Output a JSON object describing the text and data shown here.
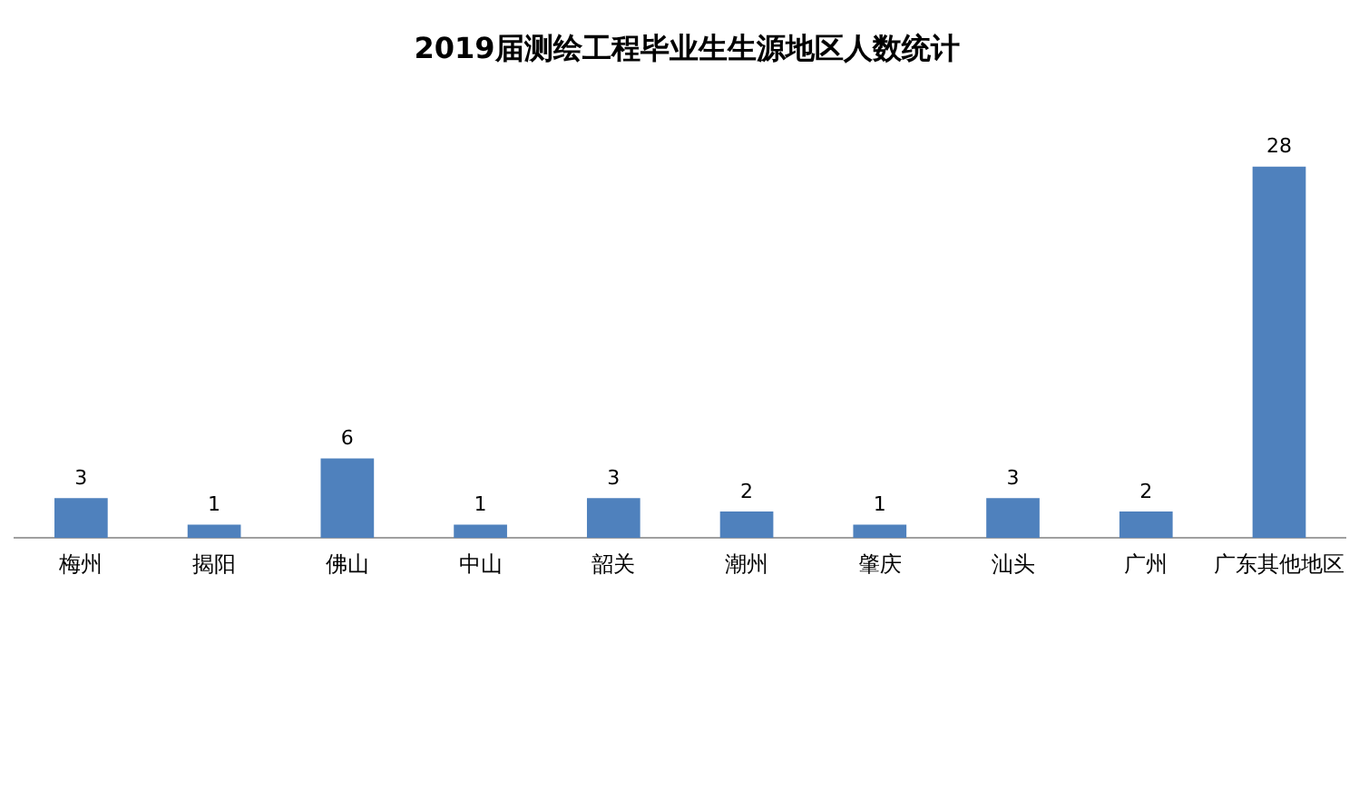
{
  "chart_data": {
    "type": "bar",
    "title": "2019届测绘工程毕业生生源地区人数统计",
    "categories": [
      "梅州",
      "揭阳",
      "佛山",
      "中山",
      "韶关",
      "潮州",
      "肇庆",
      "汕头",
      "广州",
      "广东其他地区"
    ],
    "values": [
      3,
      1,
      6,
      1,
      3,
      2,
      1,
      3,
      2,
      28
    ],
    "color": "#4f81bd",
    "data_labels": true,
    "grid": false,
    "legend": false
  }
}
